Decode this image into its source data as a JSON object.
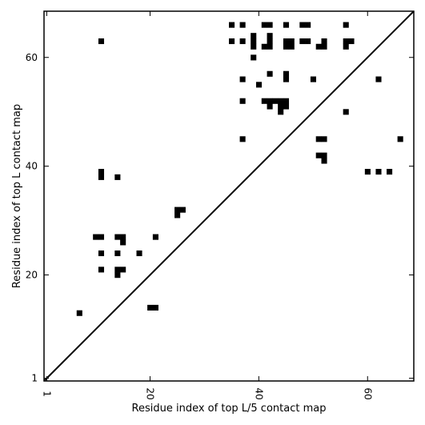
{
  "chart_data": {
    "type": "heatmap",
    "xlabel": "Residue index of top L/5 contact map",
    "ylabel": "Residue index of top L contact map",
    "xlim": [
      0.5,
      68.5
    ],
    "ylim": [
      0.5,
      68.5
    ],
    "xticks": [
      1,
      20,
      40,
      60
    ],
    "yticks": [
      1,
      20,
      40,
      60
    ],
    "diagonal": true,
    "cell_color": "#000000",
    "upper_cells": [
      [
        11,
        63
      ],
      [
        35,
        66
      ],
      [
        37,
        66
      ],
      [
        41,
        66
      ],
      [
        42,
        66
      ],
      [
        45,
        66
      ],
      [
        48,
        66
      ],
      [
        49,
        66
      ],
      [
        56,
        66
      ],
      [
        35,
        63
      ],
      [
        37,
        63
      ],
      [
        39,
        64
      ],
      [
        39,
        63
      ],
      [
        42,
        64
      ],
      [
        42,
        63
      ],
      [
        45,
        63
      ],
      [
        46,
        63
      ],
      [
        48,
        63
      ],
      [
        49,
        63
      ],
      [
        52,
        63
      ],
      [
        56,
        63
      ],
      [
        57,
        63
      ],
      [
        39,
        62
      ],
      [
        41,
        62
      ],
      [
        42,
        62
      ],
      [
        45,
        62
      ],
      [
        46,
        62
      ],
      [
        51,
        62
      ],
      [
        52,
        62
      ],
      [
        56,
        62
      ],
      [
        39,
        60
      ],
      [
        37,
        56
      ],
      [
        45,
        57
      ],
      [
        42,
        57
      ],
      [
        45,
        56
      ],
      [
        50,
        56
      ],
      [
        62,
        56
      ],
      [
        40,
        55
      ],
      [
        37,
        52
      ],
      [
        41,
        52
      ],
      [
        42,
        52
      ],
      [
        43,
        52
      ],
      [
        44,
        52
      ],
      [
        45,
        52
      ],
      [
        42,
        51
      ],
      [
        44,
        51
      ],
      [
        45,
        51
      ],
      [
        44,
        50
      ],
      [
        56,
        50
      ],
      [
        37,
        45
      ],
      [
        51,
        45
      ],
      [
        52,
        45
      ],
      [
        66,
        45
      ],
      [
        51,
        42
      ],
      [
        52,
        42
      ],
      [
        52,
        41
      ],
      [
        60,
        39
      ],
      [
        62,
        39
      ],
      [
        64,
        39
      ]
    ],
    "lower_cells": [
      [
        11,
        39
      ],
      [
        11,
        38
      ],
      [
        14,
        38
      ],
      [
        25,
        32
      ],
      [
        26,
        32
      ],
      [
        25,
        31
      ],
      [
        10,
        27
      ],
      [
        11,
        27
      ],
      [
        14,
        27
      ],
      [
        15,
        27
      ],
      [
        15,
        26
      ],
      [
        21,
        27
      ],
      [
        11,
        24
      ],
      [
        14,
        24
      ],
      [
        18,
        24
      ],
      [
        11,
        21
      ],
      [
        14,
        21
      ],
      [
        15,
        21
      ],
      [
        14,
        20
      ],
      [
        20,
        14
      ],
      [
        21,
        14
      ],
      [
        7,
        13
      ]
    ]
  }
}
